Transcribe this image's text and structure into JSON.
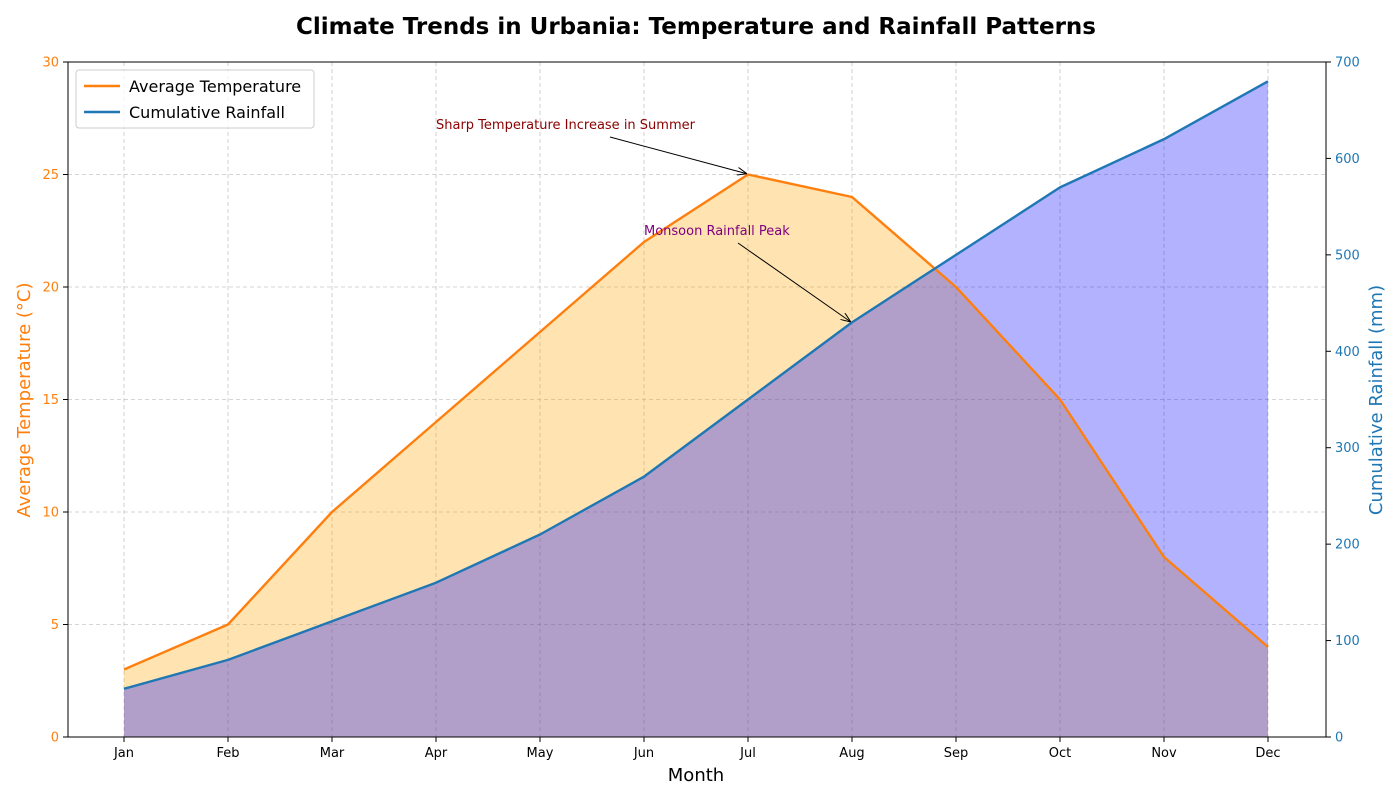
{
  "chart_data": {
    "type": "area",
    "title": "Climate Trends in Urbania: Temperature and Rainfall Patterns",
    "xlabel": "Month",
    "categories": [
      "Jan",
      "Feb",
      "Mar",
      "Apr",
      "May",
      "Jun",
      "Jul",
      "Aug",
      "Sep",
      "Oct",
      "Nov",
      "Dec"
    ],
    "left_axis": {
      "label": "Average Temperature (°C)",
      "ylim": [
        0,
        30
      ],
      "ticks": [
        "0",
        "5",
        "10",
        "15",
        "20",
        "25",
        "30"
      ],
      "color": "#ff7f0e"
    },
    "right_axis": {
      "label": "Cumulative Rainfall (mm)",
      "ylim": [
        0,
        700
      ],
      "ticks": [
        "0",
        "100",
        "200",
        "300",
        "400",
        "500",
        "600",
        "700"
      ],
      "color": "#1f77b4"
    },
    "series": [
      {
        "name": "Average Temperature",
        "axis": "left",
        "values": [
          3,
          5,
          10,
          14,
          18,
          22,
          25,
          24,
          20,
          15,
          8,
          4
        ],
        "line_color": "#ff7f0e",
        "fill_color": "#ffa500"
      },
      {
        "name": "Cumulative Rainfall",
        "axis": "right",
        "values": [
          50,
          80,
          120,
          160,
          210,
          270,
          350,
          430,
          500,
          570,
          620,
          680
        ],
        "line_color": "#1f77b4",
        "fill_color": "#0000ff"
      }
    ],
    "annotations": [
      {
        "text": "Sharp Temperature Increase in Summer",
        "target_category": "Jul",
        "target_value": 25,
        "axis": "left",
        "color": "#8b0000"
      },
      {
        "text": "Monsoon Rainfall Peak",
        "target_category": "Aug",
        "target_value": 430,
        "axis": "right",
        "color": "#800080"
      }
    ],
    "legend": "top-left",
    "grid": true
  }
}
